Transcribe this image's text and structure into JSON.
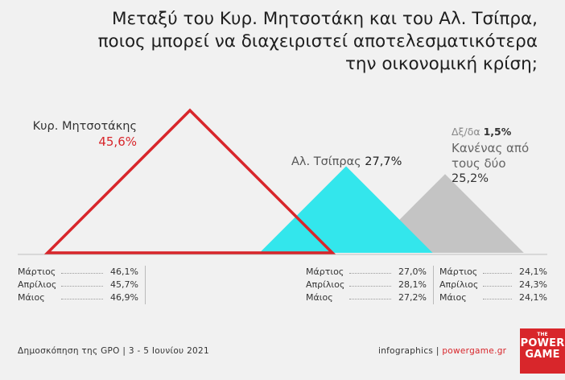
{
  "title": {
    "line1": "Μεταξύ του Κυρ. Μητσοτάκη και του Αλ. Τσίπρα,",
    "line2": "ποιος μπορεί να διαχειριστεί αποτελεσματικότερα",
    "line3": "την οικονομική κρίση;"
  },
  "chart_data": {
    "type": "bar",
    "title": "Μεταξύ του Κυρ. Μητσοτάκη και του Αλ. Τσίπρα, ποιος μπορεί να διαχειριστεί αποτελεσματικότερα την οικονομική κρίση;",
    "categories": [
      "Κυρ. Μητσοτάκης",
      "Αλ. Τσίπρας",
      "Κανένας από τους δύο"
    ],
    "values": [
      45.6,
      27.7,
      25.2
    ],
    "value_labels": [
      "45,6%",
      "27,7%",
      "25,2%"
    ],
    "other": {
      "label": "Δξ/δα",
      "value": 1.5,
      "value_label": "1,5%"
    },
    "colors": [
      "#d8262b",
      "#33e6ec",
      "#c4c4c4"
    ],
    "history": {
      "months": [
        "Μάρτιος",
        "Απρίλιος",
        "Μάιος"
      ],
      "series": [
        {
          "name": "Κυρ. Μητσοτάκης",
          "values": [
            46.1,
            45.7,
            46.9
          ],
          "labels": [
            "46,1%",
            "45,7%",
            "46,9%"
          ]
        },
        {
          "name": "Αλ. Τσίπρας",
          "values": [
            27.0,
            28.1,
            27.2
          ],
          "labels": [
            "27,0%",
            "28,1%",
            "27,2%"
          ]
        },
        {
          "name": "Κανένας από τους δύο",
          "values": [
            24.1,
            24.3,
            24.1
          ],
          "labels": [
            "24,1%",
            "24,3%",
            "24,1%"
          ]
        }
      ]
    }
  },
  "labels": {
    "mitsotakis_name": "Κυρ. Μητσοτάκης",
    "mitsotakis_value": "45,6%",
    "tsipras_name": "Αλ. Τσίπρας",
    "tsipras_value": "27,7%",
    "dkda_name": "Δξ/δα",
    "dkda_value": "1,5%",
    "none_name": "Κανένας από τους δύο",
    "none_value": "25,2%"
  },
  "tables": {
    "mitsotakis": [
      {
        "month": "Μάρτιος",
        "value": "46,1%"
      },
      {
        "month": "Απρίλιος",
        "value": "45,7%"
      },
      {
        "month": "Μάιος",
        "value": "46,9%"
      }
    ],
    "tsipras": [
      {
        "month": "Μάρτιος",
        "value": "27,0%"
      },
      {
        "month": "Απρίλιος",
        "value": "28,1%"
      },
      {
        "month": "Μάιος",
        "value": "27,2%"
      }
    ],
    "none": [
      {
        "month": "Μάρτιος",
        "value": "24,1%"
      },
      {
        "month": "Απρίλιος",
        "value": "24,3%"
      },
      {
        "month": "Μάιος",
        "value": "24,1%"
      }
    ]
  },
  "footer": {
    "source": "Δημοσκόπηση της GPO | 3 - 5 Ιουνίου 2021",
    "credit_prefix": "infographics | ",
    "credit_brand": "powergame.gr"
  },
  "logo": {
    "line1": "THE",
    "line2": "POWER",
    "line3": "GAME"
  }
}
